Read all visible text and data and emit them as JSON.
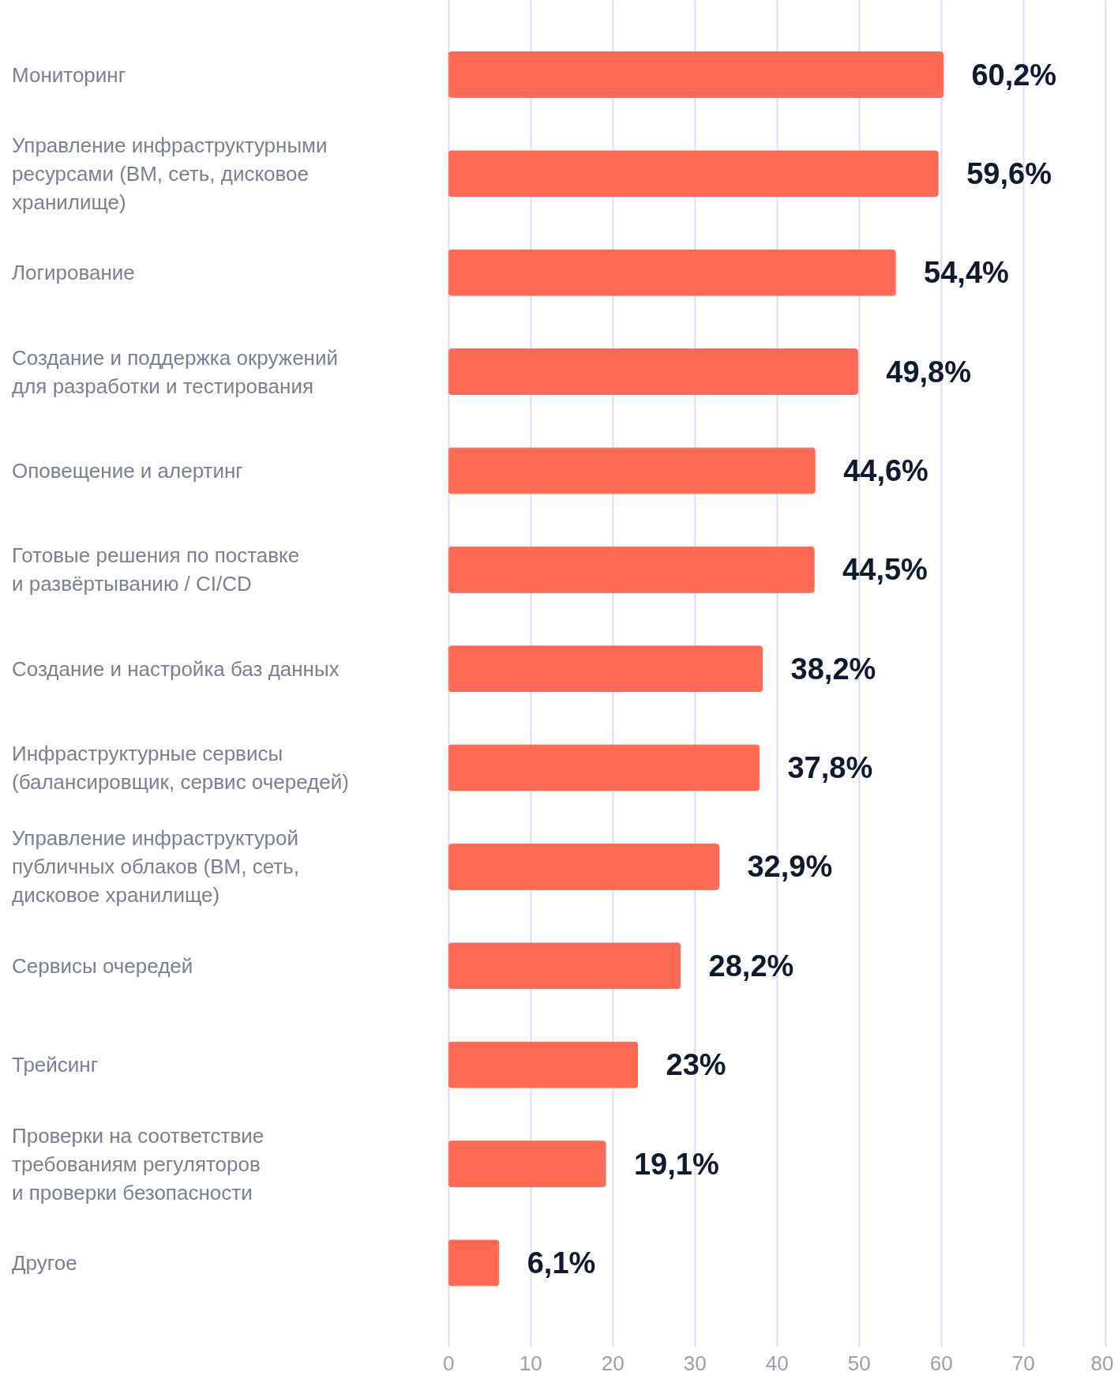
{
  "chart_data": {
    "type": "bar",
    "orientation": "horizontal",
    "categories": [
      "Мониторинг",
      "Управление инфраструктурными\nресурсами (ВМ, сеть, дисковое\nхранилище)",
      "Логирование",
      "Создание и поддержка окружений\nдля разработки и тестирования",
      "Оповещение и алертинг",
      "Готовые решения по поставке\nи развёртыванию / CI/CD",
      "Создание и настройка баз данных",
      "Инфраструктурные сервисы\n(балансировщик, сервис очередей)",
      "Управление инфраструктурой\nпубличных облаков (ВМ, сеть,\nдисковое хранилище)",
      "Сервисы очередей",
      "Трейсинг",
      "Проверки на соответствие\nтребованиям регуляторов\nи проверки безопасности",
      "Другое"
    ],
    "values": [
      60.2,
      59.6,
      54.4,
      49.8,
      44.6,
      44.5,
      38.2,
      37.8,
      32.9,
      28.2,
      23,
      19.1,
      6.1
    ],
    "value_labels": [
      "60,2%",
      "59,6%",
      "54,4%",
      "49,8%",
      "44,6%",
      "44,5%",
      "38,2%",
      "37,8%",
      "32,9%",
      "28,2%",
      "23%",
      "19,1%",
      "6,1%"
    ],
    "color": "#ff6b57",
    "xlim": [
      0,
      80
    ],
    "xticks": [
      0,
      10,
      20,
      30,
      40,
      50,
      60,
      70,
      80
    ],
    "grid": "x"
  }
}
